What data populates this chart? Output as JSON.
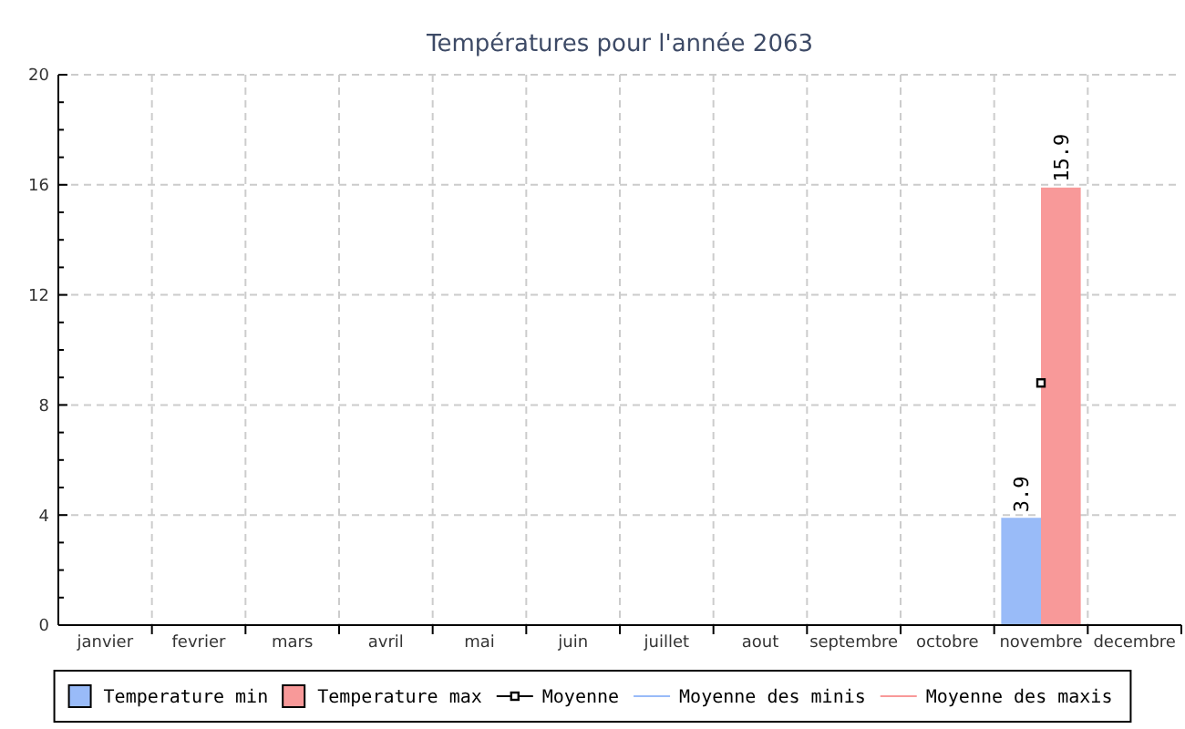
{
  "chart_data": {
    "type": "bar",
    "title": "Températures pour l'année 2063",
    "categories": [
      "janvier",
      "fevrier",
      "mars",
      "avril",
      "mai",
      "juin",
      "juillet",
      "aout",
      "septembre",
      "octobre",
      "novembre",
      "decembre"
    ],
    "series": [
      {
        "name": "Temperature min",
        "color": "#99bbf8",
        "values": [
          null,
          null,
          null,
          null,
          null,
          null,
          null,
          null,
          null,
          null,
          3.9,
          null
        ],
        "value_labels": [
          null,
          null,
          null,
          null,
          null,
          null,
          null,
          null,
          null,
          null,
          "3.9",
          null
        ]
      },
      {
        "name": "Temperature max",
        "color": "#f89999",
        "values": [
          null,
          null,
          null,
          null,
          null,
          null,
          null,
          null,
          null,
          null,
          15.9,
          null
        ],
        "value_labels": [
          null,
          null,
          null,
          null,
          null,
          null,
          null,
          null,
          null,
          null,
          "15.9",
          null
        ]
      },
      {
        "name": "Moyenne",
        "type": "line",
        "color": "#000000",
        "marker": "square",
        "values": [
          null,
          null,
          null,
          null,
          null,
          null,
          null,
          null,
          null,
          null,
          8.8,
          null
        ]
      },
      {
        "name": "Moyenne des minis",
        "type": "line",
        "color": "#99bbf8",
        "marker": "none",
        "values": [
          null,
          null,
          null,
          null,
          null,
          null,
          null,
          null,
          null,
          null,
          null,
          null
        ]
      },
      {
        "name": "Moyenne des maxis",
        "type": "line",
        "color": "#f89999",
        "marker": "none",
        "values": [
          null,
          null,
          null,
          null,
          null,
          null,
          null,
          null,
          null,
          null,
          null,
          null
        ]
      }
    ],
    "ylim": [
      0,
      20
    ],
    "yticks": [
      0,
      {
        "value": 1,
        "label": null
      },
      {
        "value": 2,
        "label": null
      },
      {
        "value": 3,
        "label": null
      },
      4,
      {
        "value": 5,
        "label": null
      },
      {
        "value": 6,
        "label": null
      },
      {
        "value": 7,
        "label": null
      },
      8,
      {
        "value": 9,
        "label": null
      },
      {
        "value": 10,
        "label": null
      },
      {
        "value": 11,
        "label": null
      },
      12,
      {
        "value": 13,
        "label": null
      },
      {
        "value": 14,
        "label": null
      },
      {
        "value": 15,
        "label": null
      },
      16,
      {
        "value": 17,
        "label": null
      },
      {
        "value": 18,
        "label": null
      },
      {
        "value": 19,
        "label": null
      },
      20
    ],
    "grid": true,
    "legend": "bottom"
  }
}
